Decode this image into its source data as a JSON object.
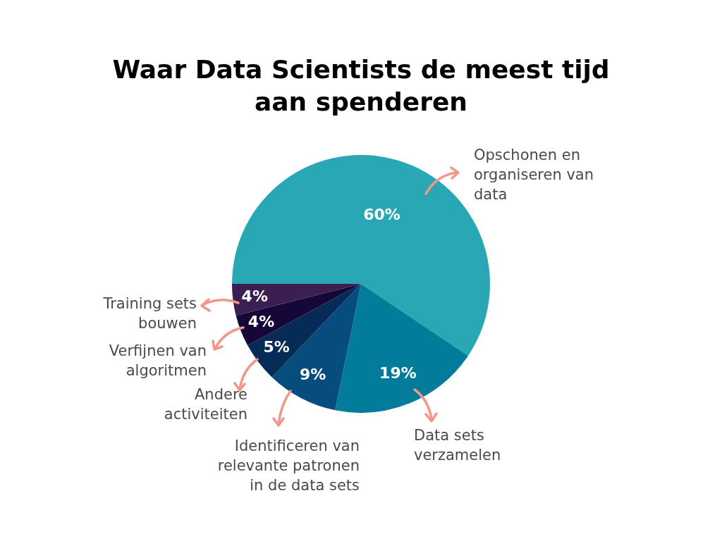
{
  "chart_data": {
    "type": "pie",
    "title": "Waar Data Scientists de meest tijd aan spenderen",
    "categories": [
      "Opschonen en organiseren van data",
      "Data sets verzamelen",
      "Identificeren van relevante patronen in de data sets",
      "Andere activiteiten",
      "Verfijnen van algoritmen",
      "Training sets bouwen"
    ],
    "values": [
      60,
      19,
      9,
      5,
      4,
      4
    ],
    "colors": [
      "#29a7b5",
      "#027c9a",
      "#064c7c",
      "#062b57",
      "#150737",
      "#3b1f52"
    ],
    "value_labels": [
      "60%",
      "19%",
      "9%",
      "5%",
      "4%",
      "4%"
    ],
    "legend": false
  }
}
